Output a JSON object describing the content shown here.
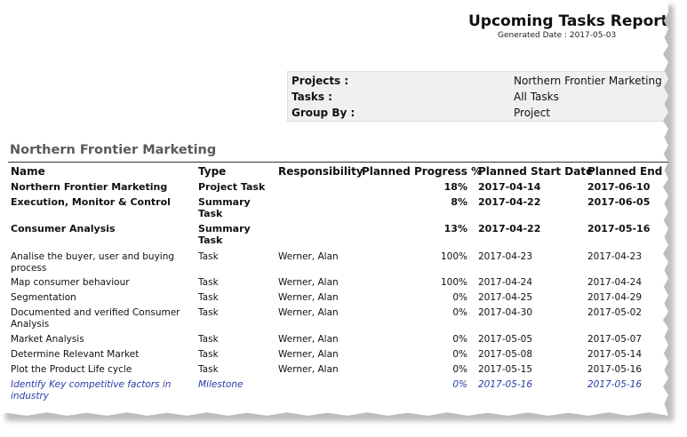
{
  "report": {
    "title": "Upcoming Tasks Report",
    "generated": "Generated Date : 2017-05-03"
  },
  "params": [
    {
      "label": "Projects :",
      "value": "Northern Frontier Marketing"
    },
    {
      "label": "Tasks :",
      "value": "All Tasks"
    },
    {
      "label": "Group By :",
      "value": "Project"
    }
  ],
  "group": {
    "title": "Northern Frontier Marketing"
  },
  "columns": {
    "name": "Name",
    "type": "Type",
    "responsibility": "Responsibility",
    "progress": "Planned Progress %",
    "start": "Planned Start Date",
    "end": "Planned End Da"
  },
  "rows": [
    {
      "name": "Northern Frontier Marketing",
      "type": "Project Task",
      "resp": "",
      "progress": "18%",
      "start": "2017-04-14",
      "end": "2017-06-10"
    },
    {
      "name": "Execution, Monitor & Control",
      "type": "Summary Task",
      "resp": "",
      "progress": "8%",
      "start": "2017-04-22",
      "end": "2017-06-05"
    },
    {
      "name": "Consumer Analysis",
      "type": "Summary Task",
      "resp": "",
      "progress": "13%",
      "start": "2017-04-22",
      "end": "2017-05-16"
    },
    {
      "name": "Analise the buyer, user and buying process",
      "type": "Task",
      "resp": "Werner, Alan",
      "progress": "100%",
      "start": "2017-04-23",
      "end": "2017-04-23"
    },
    {
      "name": "Map consumer behaviour",
      "type": "Task",
      "resp": "Werner, Alan",
      "progress": "100%",
      "start": "2017-04-24",
      "end": "2017-04-24"
    },
    {
      "name": "Segmentation",
      "type": "Task",
      "resp": "Werner, Alan",
      "progress": "0%",
      "start": "2017-04-25",
      "end": "2017-04-29"
    },
    {
      "name": "Documented and verified Consumer Analysis",
      "type": "Task",
      "resp": "Werner, Alan",
      "progress": "0%",
      "start": "2017-04-30",
      "end": "2017-05-02"
    },
    {
      "name": "Market Analysis",
      "type": "Task",
      "resp": "Werner, Alan",
      "progress": "0%",
      "start": "2017-05-05",
      "end": "2017-05-07"
    },
    {
      "name": "Determine Relevant Market",
      "type": "Task",
      "resp": "Werner, Alan",
      "progress": "0%",
      "start": "2017-05-08",
      "end": "2017-05-14"
    },
    {
      "name": "Plot the Product Life cycle",
      "type": "Task",
      "resp": "Werner, Alan",
      "progress": "0%",
      "start": "2017-05-15",
      "end": "2017-05-16"
    },
    {
      "name": "Identify Key competitive factors in industry",
      "type": "Milestone",
      "resp": "",
      "progress": "0%",
      "start": "2017-05-16",
      "end": "2017-05-16"
    }
  ]
}
